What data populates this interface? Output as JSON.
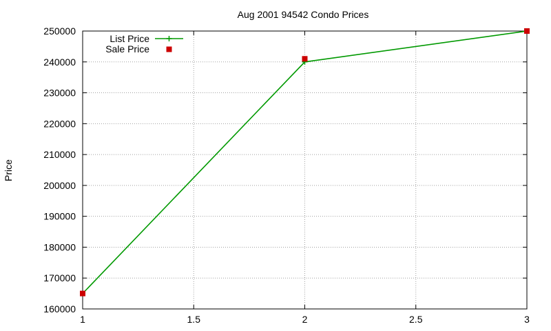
{
  "chart_data": {
    "type": "line",
    "title": "Aug 2001 94542 Condo Prices",
    "xlabel": "",
    "ylabel": "Price",
    "xlim": [
      1,
      3
    ],
    "ylim": [
      160000,
      250000
    ],
    "x_ticks": [
      1,
      1.5,
      2,
      2.5,
      3
    ],
    "x_tick_labels": [
      "1",
      "1.5",
      "2",
      "2.5",
      "3"
    ],
    "y_ticks": [
      160000,
      170000,
      180000,
      190000,
      200000,
      210000,
      220000,
      230000,
      240000,
      250000
    ],
    "y_tick_labels": [
      "160000",
      "170000",
      "180000",
      "190000",
      "200000",
      "210000",
      "220000",
      "230000",
      "240000",
      "250000"
    ],
    "grid": true,
    "legend_position": "top-left",
    "series": [
      {
        "name": "List Price",
        "style": "linespoints",
        "marker": "plus",
        "color": "#009900",
        "x": [
          1,
          2,
          3
        ],
        "y": [
          165000,
          240000,
          250000
        ]
      },
      {
        "name": "Sale Price",
        "style": "points",
        "marker": "square",
        "color": "#cc0000",
        "x": [
          1,
          2,
          3
        ],
        "y": [
          165000,
          241000,
          250000
        ]
      }
    ]
  }
}
